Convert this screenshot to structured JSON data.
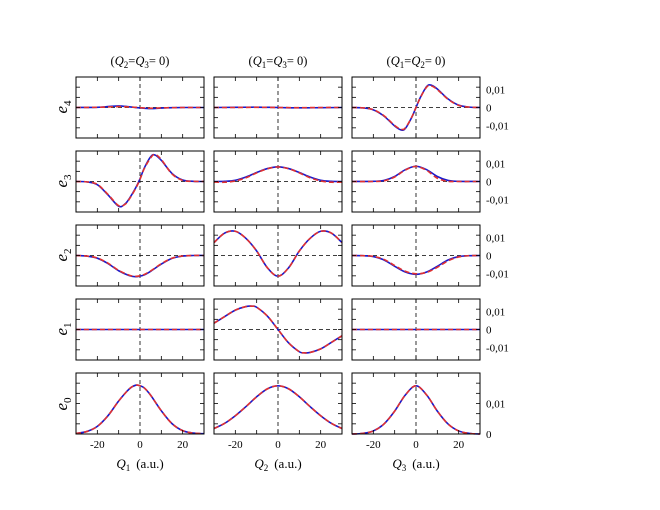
{
  "headers": [
    {
      "open": "(",
      "q_a": "Q",
      "sub_a": "2",
      "eq1": "=",
      "q_b": "Q",
      "sub_b": "3",
      "eq2": "= 0)"
    },
    {
      "open": "(",
      "q_a": "Q",
      "sub_a": "1",
      "eq1": "=",
      "q_b": "Q",
      "sub_b": "3",
      "eq2": "= 0)"
    },
    {
      "open": "(",
      "q_a": "Q",
      "sub_a": "1",
      "eq1": "=",
      "q_b": "Q",
      "sub_b": "2",
      "eq2": "= 0)"
    }
  ],
  "row_labels": [
    {
      "base": "e",
      "sub": "4"
    },
    {
      "base": "e",
      "sub": "3"
    },
    {
      "base": "e",
      "sub": "2"
    },
    {
      "base": "e",
      "sub": "1"
    },
    {
      "base": "e",
      "sub": "0"
    }
  ],
  "x_labels": [
    {
      "q": "Q",
      "sub": "1",
      "unit": "(a.u.)"
    },
    {
      "q": "Q",
      "sub": "2",
      "unit": "(a.u.)"
    },
    {
      "q": "Q",
      "sub": "3",
      "unit": "(a.u.)"
    }
  ],
  "colors": {
    "exact": "#1a1acc",
    "approx": "#e03030",
    "axes": "#000000"
  },
  "chart_data": {
    "type": "line",
    "layout": "grid 5 rows x 3 columns",
    "x_range": [
      -30,
      30
    ],
    "x_ticks": [
      -20,
      0,
      20
    ],
    "x_tick_labels": [
      "-20",
      "0",
      "20"
    ],
    "series_styles": [
      "solid blue",
      "dashed red"
    ],
    "rows": [
      {
        "y_range": [
          -0.017,
          0.017
        ],
        "y_ticks": [
          0.01,
          0,
          -0.01
        ],
        "y_tick_labels": [
          "0,01",
          "0",
          "-0,01"
        ],
        "zero_line": true,
        "panels": [
          {
            "x": [
              -30,
              -20,
              -15,
              -10,
              -5,
              0,
              5,
              10,
              15,
              20,
              30
            ],
            "exact": [
              0,
              0.0001,
              0.0005,
              0.0009,
              0.0004,
              -0.0002,
              -0.0006,
              -0.0003,
              -0.0001,
              0,
              0
            ],
            "approx": [
              0,
              0.0001,
              0.0003,
              0.0005,
              0.0003,
              -0.0001,
              -0.0004,
              -0.0002,
              -0.0001,
              0,
              0
            ]
          },
          {
            "x": [
              -30,
              -20,
              -10,
              0,
              10,
              20,
              30
            ],
            "exact": [
              0,
              0.0001,
              0.0002,
              0,
              -0.0002,
              -0.0001,
              0
            ],
            "approx": [
              0,
              0,
              0.0001,
              0,
              -0.0001,
              0,
              0
            ]
          },
          {
            "x": [
              -30,
              -25,
              -20,
              -15,
              -10,
              -7,
              -5,
              -2,
              0,
              2,
              5,
              7,
              10,
              15,
              20,
              25,
              30
            ],
            "exact": [
              0,
              -0.0002,
              -0.0013,
              -0.0048,
              -0.0103,
              -0.0125,
              -0.0117,
              -0.0055,
              0,
              0.0055,
              0.0117,
              0.0125,
              0.0103,
              0.0048,
              0.0013,
              0.0002,
              0
            ],
            "approx": [
              0,
              -0.0002,
              -0.0012,
              -0.0046,
              -0.01,
              -0.0121,
              -0.0114,
              -0.0054,
              0,
              0.0054,
              0.0114,
              0.0121,
              0.01,
              0.0046,
              0.0012,
              0.0002,
              0
            ]
          }
        ]
      },
      {
        "y_range": [
          -0.017,
          0.017
        ],
        "y_ticks": [
          0.01,
          0,
          -0.01
        ],
        "y_tick_labels": [
          "0,01",
          "0",
          "-0,01"
        ],
        "zero_line": true,
        "panels": [
          {
            "x": [
              -30,
              -25,
              -20,
              -15,
              -10,
              -7,
              -5,
              -2,
              0,
              2,
              5,
              7,
              10,
              15,
              20,
              25,
              30
            ],
            "exact": [
              0,
              -0.0002,
              -0.0018,
              -0.0075,
              -0.0138,
              -0.0125,
              -0.0095,
              -0.0035,
              0.0015,
              0.0075,
              0.0138,
              0.0148,
              0.0118,
              0.0045,
              0.0008,
              0.0001,
              0
            ],
            "approx": [
              0,
              -0.0002,
              -0.0016,
              -0.0072,
              -0.0135,
              -0.0127,
              -0.0098,
              -0.0038,
              0.0012,
              0.0072,
              0.0132,
              0.0151,
              0.0122,
              0.0042,
              0.0006,
              0.0001,
              0
            ]
          },
          {
            "x": [
              -30,
              -25,
              -20,
              -15,
              -10,
              -5,
              0,
              5,
              10,
              15,
              20,
              25,
              30
            ],
            "exact": [
              0,
              0.0001,
              0.0007,
              0.0025,
              0.005,
              0.0072,
              0.0082,
              0.0072,
              0.005,
              0.0025,
              0.0007,
              0.0001,
              0
            ],
            "approx": [
              -0.0003,
              -0.0004,
              0.0003,
              0.0021,
              0.0048,
              0.0071,
              0.0081,
              0.0071,
              0.0048,
              0.0021,
              0.0003,
              -0.0004,
              -0.0003
            ]
          },
          {
            "x": [
              -30,
              -20,
              -15,
              -10,
              -5,
              0,
              5,
              10,
              15,
              20,
              30
            ],
            "exact": [
              0,
              0.0001,
              0.0006,
              0.0028,
              0.0066,
              0.0085,
              0.0066,
              0.0028,
              0.0006,
              0.0001,
              0
            ],
            "approx": [
              0,
              0,
              0.0004,
              0.0025,
              0.0064,
              0.0084,
              0.0062,
              0.0018,
              0.0001,
              0,
              0
            ]
          }
        ]
      },
      {
        "y_range": [
          -0.017,
          0.017
        ],
        "y_ticks": [
          0.01,
          0,
          -0.01
        ],
        "y_tick_labels": [
          "0,01",
          "0",
          "-0,01"
        ],
        "zero_line": true,
        "panels": [
          {
            "x": [
              -30,
              -25,
              -20,
              -15,
              -10,
              -5,
              -2,
              0,
              2,
              5,
              10,
              15,
              20,
              25,
              30
            ],
            "exact": [
              0,
              -0.0003,
              -0.0015,
              -0.0045,
              -0.0085,
              -0.0112,
              -0.0118,
              -0.0115,
              -0.0108,
              -0.0088,
              -0.0048,
              -0.0016,
              -0.0003,
              0,
              0
            ],
            "approx": [
              0,
              -0.0003,
              -0.0014,
              -0.0043,
              -0.0083,
              -0.011,
              -0.0116,
              -0.0113,
              -0.0106,
              -0.0086,
              -0.0046,
              -0.0015,
              -0.0003,
              0,
              0
            ]
          },
          {
            "x": [
              -30,
              -25,
              -20,
              -15,
              -10,
              -5,
              0,
              5,
              10,
              15,
              20,
              25,
              30
            ],
            "exact": [
              0.0072,
              0.0125,
              0.0135,
              0.0095,
              0.0025,
              -0.0068,
              -0.0115,
              -0.0068,
              0.0025,
              0.0095,
              0.0135,
              0.0125,
              0.0072
            ],
            "approx": [
              0.0072,
              0.0125,
              0.0135,
              0.0095,
              0.0025,
              -0.0068,
              -0.0115,
              -0.0068,
              0.0025,
              0.0095,
              0.0135,
              0.0125,
              0.0072
            ]
          },
          {
            "x": [
              -30,
              -25,
              -20,
              -15,
              -10,
              -5,
              0,
              5,
              10,
              15,
              20,
              25,
              30
            ],
            "exact": [
              0,
              -0.0001,
              -0.0006,
              -0.0025,
              -0.006,
              -0.0092,
              -0.0105,
              -0.0092,
              -0.006,
              -0.0025,
              -0.0006,
              -0.0001,
              0
            ],
            "approx": [
              0,
              -0.0001,
              -0.0005,
              -0.0022,
              -0.0056,
              -0.0088,
              -0.0102,
              -0.0094,
              -0.0066,
              -0.003,
              -0.0008,
              -0.0001,
              0
            ]
          }
        ]
      },
      {
        "y_range": [
          -0.017,
          0.017
        ],
        "y_ticks": [
          0.01,
          0,
          -0.01
        ],
        "y_tick_labels": [
          "0,01",
          "0",
          "-0,01"
        ],
        "zero_line": true,
        "panels": [
          {
            "x": [
              -30,
              0,
              30
            ],
            "exact": [
              0,
              0,
              0
            ],
            "approx": [
              0,
              0,
              0
            ]
          },
          {
            "x": [
              -30,
              -25,
              -20,
              -15,
              -12,
              -10,
              -5,
              0,
              5,
              10,
              12,
              15,
              20,
              25,
              30
            ],
            "exact": [
              0.0035,
              0.0072,
              0.0108,
              0.0128,
              0.013,
              0.0124,
              0.0075,
              0,
              -0.0075,
              -0.0124,
              -0.013,
              -0.0128,
              -0.0108,
              -0.0072,
              -0.0035
            ],
            "approx": [
              0.0035,
              0.0072,
              0.0108,
              0.0128,
              0.013,
              0.0124,
              0.0075,
              0,
              -0.0075,
              -0.0124,
              -0.013,
              -0.0128,
              -0.0108,
              -0.0072,
              -0.0035
            ]
          },
          {
            "x": [
              -30,
              0,
              30
            ],
            "exact": [
              0,
              0,
              0
            ],
            "approx": [
              0,
              0,
              0
            ]
          }
        ]
      },
      {
        "y_range": [
          0,
          0.02
        ],
        "y_ticks": [
          0.01,
          0
        ],
        "y_tick_labels": [
          "0,01",
          "0"
        ],
        "zero_line": false,
        "panels": [
          {
            "x": [
              -30,
              -25,
              -20,
              -15,
              -10,
              -5,
              -2,
              0,
              2,
              5,
              10,
              15,
              20,
              25,
              30
            ],
            "exact": [
              0.0002,
              0.0008,
              0.0025,
              0.006,
              0.0108,
              0.0148,
              0.016,
              0.0158,
              0.0151,
              0.0127,
              0.0076,
              0.0034,
              0.0011,
              0.0003,
              0.0001
            ],
            "approx": [
              0.0002,
              0.0008,
              0.0025,
              0.006,
              0.0108,
              0.0148,
              0.016,
              0.0158,
              0.0151,
              0.0127,
              0.0076,
              0.0034,
              0.0011,
              0.0003,
              0.0001
            ]
          },
          {
            "x": [
              -30,
              -25,
              -20,
              -15,
              -10,
              -5,
              0,
              5,
              10,
              15,
              20,
              25,
              30
            ],
            "exact": [
              0.0018,
              0.0035,
              0.006,
              0.009,
              0.0122,
              0.0148,
              0.0158,
              0.0148,
              0.0122,
              0.009,
              0.006,
              0.0035,
              0.0018
            ],
            "approx": [
              0.0018,
              0.0035,
              0.006,
              0.009,
              0.0122,
              0.0148,
              0.0158,
              0.0148,
              0.0122,
              0.009,
              0.006,
              0.0035,
              0.0018
            ]
          },
          {
            "x": [
              -30,
              -25,
              -20,
              -15,
              -10,
              -5,
              0,
              5,
              10,
              15,
              20,
              25,
              30
            ],
            "exact": [
              0,
              0.0002,
              0.001,
              0.0033,
              0.0075,
              0.0128,
              0.0158,
              0.0128,
              0.0075,
              0.0033,
              0.001,
              0.0002,
              0
            ],
            "approx": [
              0,
              0.0002,
              0.001,
              0.0033,
              0.0075,
              0.0128,
              0.0158,
              0.0128,
              0.0075,
              0.0033,
              0.001,
              0.0002,
              0
            ]
          }
        ]
      }
    ]
  }
}
